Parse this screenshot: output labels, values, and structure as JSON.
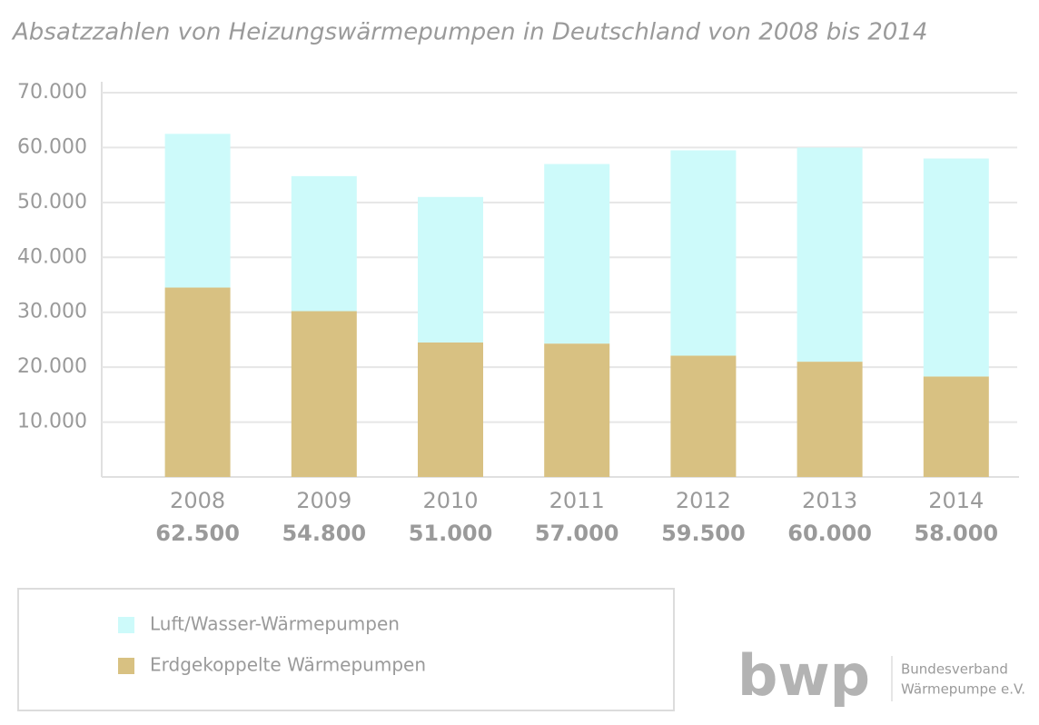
{
  "chart_data": {
    "type": "stacked_bar",
    "title": "Absatzzahlen von Heizungswärmepumpen in Deutschland von 2008 bis 2014",
    "categories": [
      "2008",
      "2009",
      "2010",
      "2011",
      "2012",
      "2013",
      "2014"
    ],
    "totals": [
      {
        "value": 62500,
        "label": "62.500"
      },
      {
        "value": 54800,
        "label": "54.800"
      },
      {
        "value": 51000,
        "label": "51.000"
      },
      {
        "value": 57000,
        "label": "57.000"
      },
      {
        "value": 59500,
        "label": "59.500"
      },
      {
        "value": 60000,
        "label": "60.000"
      },
      {
        "value": 58000,
        "label": "58.000"
      }
    ],
    "series": [
      {
        "name": "Luft/Wasser-Wärmepumpen",
        "color": "#cdfafa",
        "values": [
          28000,
          24600,
          26500,
          32700,
          37400,
          39000,
          39700
        ]
      },
      {
        "name": "Erdgekoppelte Wärmepumpen",
        "color": "#d8c182",
        "values": [
          34500,
          30200,
          24500,
          24300,
          22100,
          21000,
          18300
        ]
      }
    ],
    "ylim": [
      0,
      70000
    ],
    "yticks": [
      {
        "value": 10000,
        "label": "10.000"
      },
      {
        "value": 20000,
        "label": "20.000"
      },
      {
        "value": 30000,
        "label": "30.000"
      },
      {
        "value": 40000,
        "label": "40.000"
      },
      {
        "value": 50000,
        "label": "50.000"
      },
      {
        "value": 60000,
        "label": "60.000"
      },
      {
        "value": 70000,
        "label": "70.000"
      }
    ],
    "grid": true
  },
  "logo": {
    "mark": "bwp",
    "lines": [
      "Bundesverband",
      "Wärmepumpe e.V."
    ]
  }
}
